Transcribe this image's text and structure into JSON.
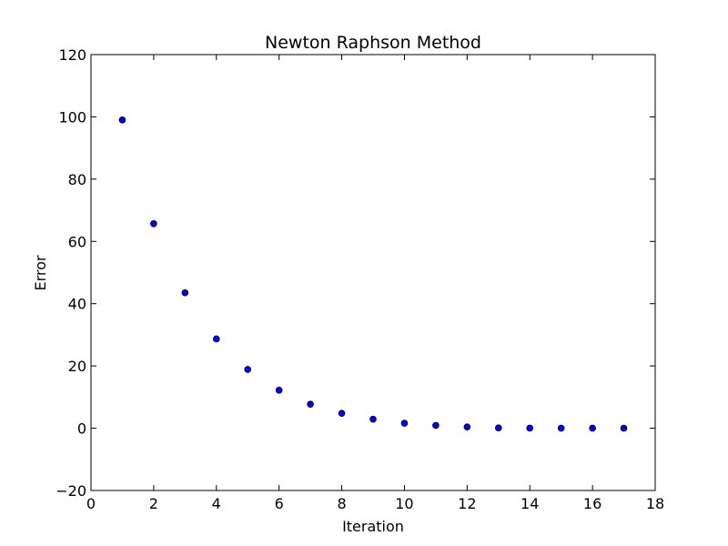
{
  "chart_data": {
    "type": "scatter",
    "title": "Newton Raphson Method",
    "xlabel": "Iteration",
    "ylabel": "Error",
    "xlim": [
      0,
      18
    ],
    "ylim": [
      -20,
      120
    ],
    "xticks": [
      0,
      2,
      4,
      6,
      8,
      10,
      12,
      14,
      16,
      18
    ],
    "yticks": [
      -20,
      0,
      20,
      40,
      60,
      80,
      100,
      120
    ],
    "xtick_labels": [
      "0",
      "2",
      "4",
      "6",
      "8",
      "10",
      "12",
      "14",
      "16",
      "18"
    ],
    "ytick_labels": [
      "−20",
      "0",
      "20",
      "40",
      "60",
      "80",
      "100",
      "120"
    ],
    "grid": false,
    "marker_color": "#0000ff",
    "marker_edge_color": "#000000",
    "series": [
      {
        "x": [
          1,
          2,
          3,
          4,
          5,
          6,
          7,
          8,
          9,
          10,
          11,
          12,
          13,
          14,
          15,
          16,
          17
        ],
        "y": [
          99,
          65.7,
          43.5,
          28.7,
          18.9,
          12.2,
          7.7,
          4.8,
          2.9,
          1.6,
          0.9,
          0.4,
          0.1,
          0.05,
          0.0,
          0.0,
          0.0
        ]
      }
    ]
  }
}
